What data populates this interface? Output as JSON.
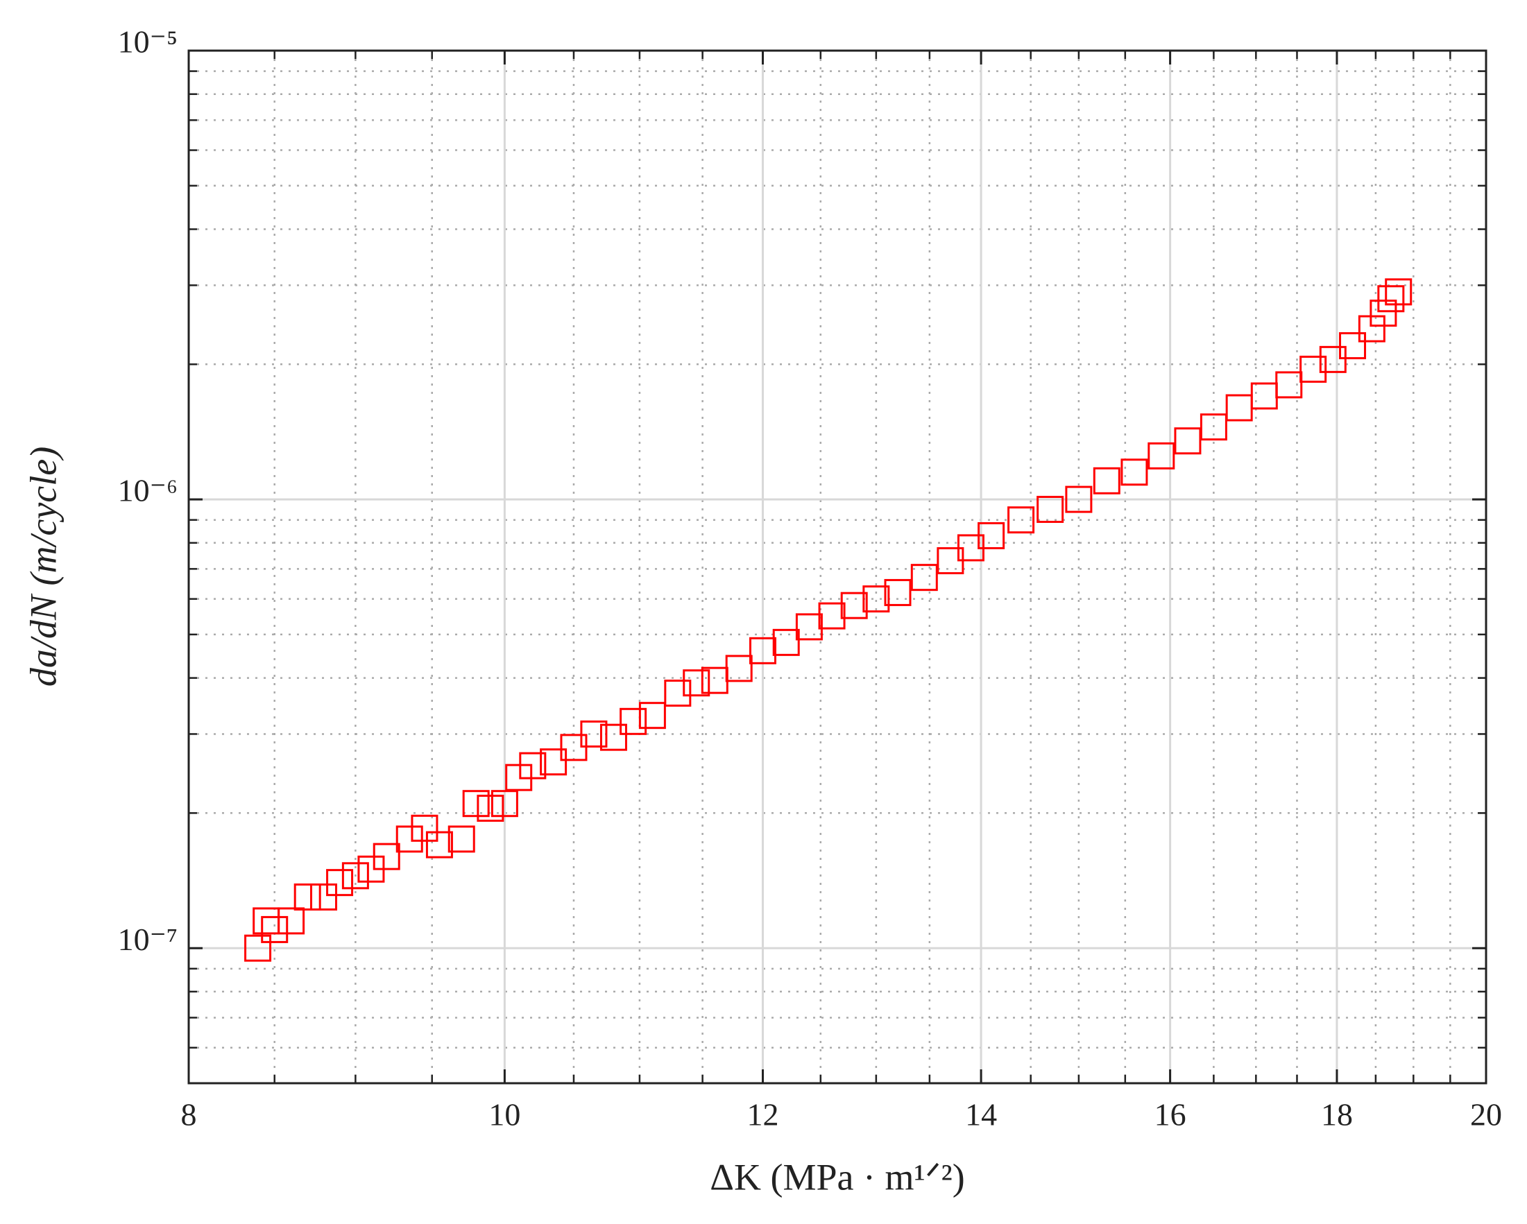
{
  "chart_data": {
    "type": "scatter",
    "xlabel": "ΔK (MPa · m¹ᐟ²)",
    "ylabel": "da/dN (m/cycle)",
    "xscale": "log",
    "yscale": "log",
    "grid": true,
    "marker": "square",
    "xlim": [
      8,
      20
    ],
    "xticks": [
      8,
      10,
      12,
      14,
      16,
      18,
      20
    ],
    "xminorticks": [
      8.5,
      9,
      9.5,
      10.5,
      11,
      11.5,
      12.5,
      13,
      13.5,
      14.5,
      15,
      15.5,
      16.5,
      17,
      17.5,
      18.5,
      19,
      19.5
    ],
    "ylim": [
      5e-08,
      1e-05
    ],
    "yticks": [
      {
        "value": 1e-07,
        "label": "10⁻⁷"
      },
      {
        "value": 1e-06,
        "label": "10⁻⁶"
      },
      {
        "value": 1e-05,
        "label": "10⁻⁵"
      }
    ],
    "yminorticks": [
      6e-08,
      7e-08,
      8e-08,
      9e-08,
      2e-07,
      3e-07,
      4e-07,
      5e-07,
      6e-07,
      7e-07,
      8e-07,
      9e-07,
      2e-06,
      3e-06,
      4e-06,
      5e-06,
      6e-06,
      7e-06,
      8e-06,
      9e-06
    ],
    "series": [
      {
        "color": "#ff0000",
        "x": [
          8.4,
          8.45,
          8.5,
          8.6,
          8.7,
          8.8,
          8.9,
          9.0,
          9.1,
          9.2,
          9.35,
          9.45,
          9.55,
          9.7,
          9.8,
          9.9,
          10.0,
          10.1,
          10.2,
          10.35,
          10.5,
          10.65,
          10.8,
          10.95,
          11.1,
          11.3,
          11.45,
          11.6,
          11.8,
          12.0,
          12.2,
          12.4,
          12.6,
          12.8,
          13.0,
          13.2,
          13.45,
          13.7,
          13.9,
          14.1,
          14.4,
          14.7,
          15.0,
          15.3,
          15.6,
          15.9,
          16.2,
          16.5,
          16.8,
          17.1,
          17.4,
          17.7,
          17.95,
          18.2,
          18.45,
          18.6,
          18.7,
          18.8
        ],
        "values": [
          1e-07,
          1.15e-07,
          1.1e-07,
          1.15e-07,
          1.3e-07,
          1.3e-07,
          1.4e-07,
          1.45e-07,
          1.5e-07,
          1.6e-07,
          1.75e-07,
          1.85e-07,
          1.7e-07,
          1.75e-07,
          2.1e-07,
          2.05e-07,
          2.1e-07,
          2.4e-07,
          2.55e-07,
          2.6e-07,
          2.8e-07,
          3e-07,
          2.95e-07,
          3.2e-07,
          3.3e-07,
          3.7e-07,
          3.9e-07,
          3.95e-07,
          4.2e-07,
          4.6e-07,
          4.8e-07,
          5.2e-07,
          5.5e-07,
          5.8e-07,
          6e-07,
          6.2e-07,
          6.7e-07,
          7.3e-07,
          7.8e-07,
          8.3e-07,
          9e-07,
          9.5e-07,
          1e-06,
          1.1e-06,
          1.15e-06,
          1.25e-06,
          1.35e-06,
          1.45e-06,
          1.6e-06,
          1.7e-06,
          1.8e-06,
          1.95e-06,
          2.05e-06,
          2.2e-06,
          2.4e-06,
          2.6e-06,
          2.8e-06,
          2.9e-06
        ]
      }
    ]
  }
}
